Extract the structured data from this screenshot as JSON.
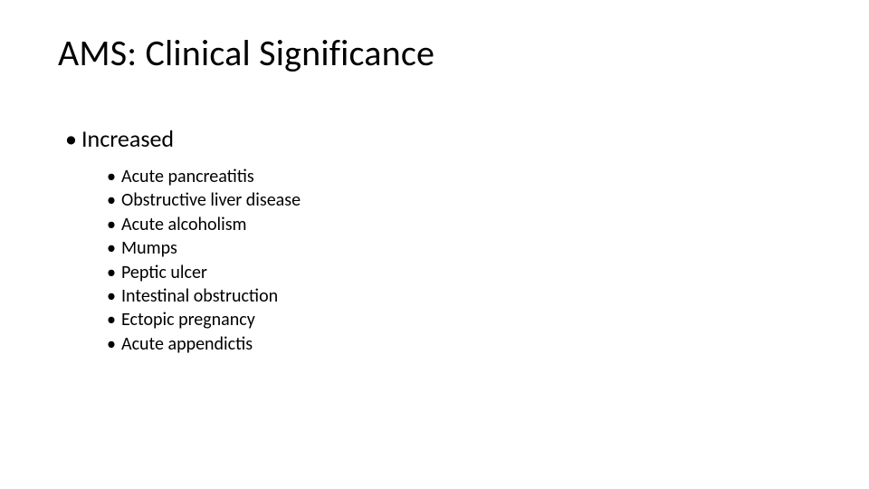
{
  "title": "AMS: Clinical Significance",
  "level1_label": "Increased",
  "items": [
    "Acute pancreatitis",
    "Obstructive liver disease",
    "Acute alcoholism",
    "Mumps",
    "Peptic ulcer",
    "Intestinal obstruction",
    "Ectopic pregnancy",
    "Acute appendictis"
  ],
  "colors": {
    "background": "#ffffff",
    "text": "#000000"
  },
  "typography": {
    "title_fontsize_pt": 30,
    "level1_fontsize_pt": 20,
    "level2_fontsize_pt": 15,
    "font_family": "Calibri"
  },
  "bullet_glyph": "•"
}
